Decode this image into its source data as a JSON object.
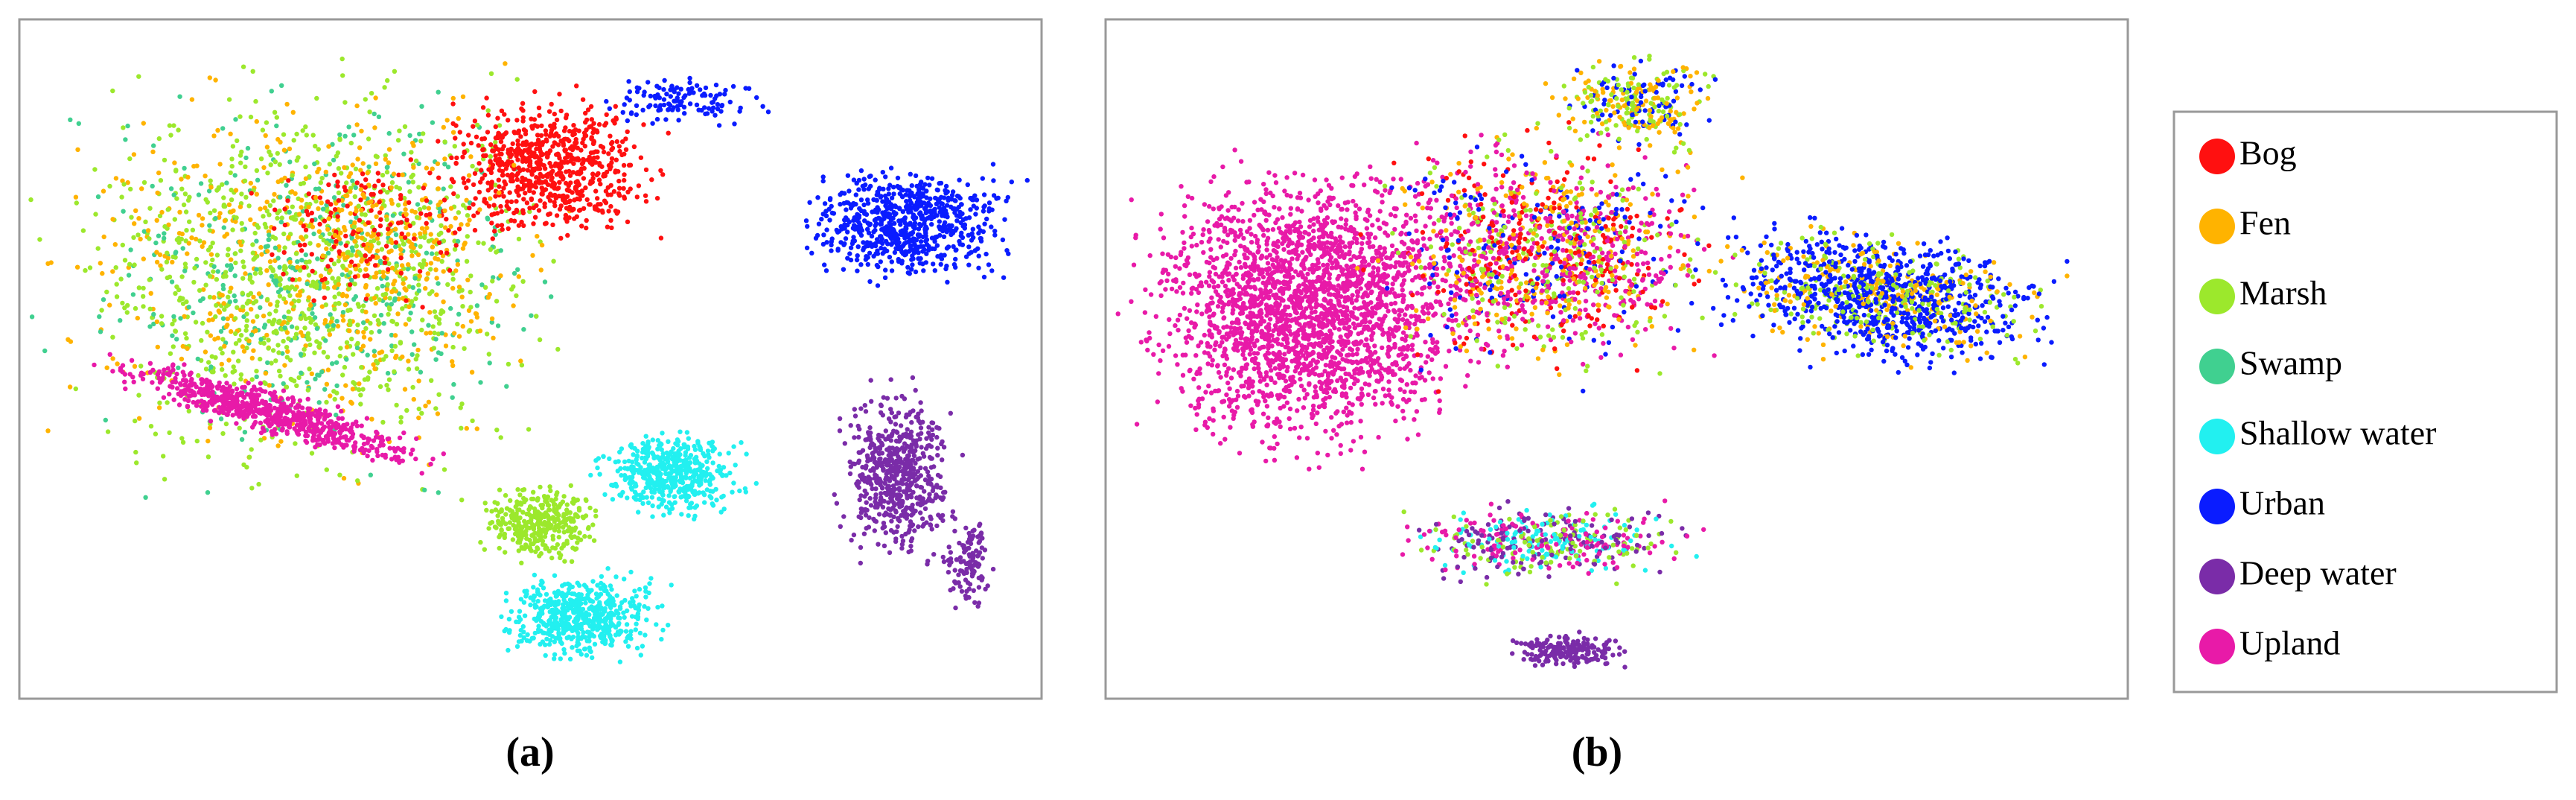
{
  "figure": {
    "panels": [
      {
        "label": "(a)"
      },
      {
        "label": "(b)"
      }
    ],
    "legend": [
      {
        "name": "Bog",
        "color": "#ff1010"
      },
      {
        "name": "Fen",
        "color": "#ffb300"
      },
      {
        "name": "Marsh",
        "color": "#9ce82c"
      },
      {
        "name": "Swamp",
        "color": "#40d090"
      },
      {
        "name": "Shallow water",
        "color": "#22f0f0"
      },
      {
        "name": "Urban",
        "color": "#0a1cff"
      },
      {
        "name": "Deep water",
        "color": "#7a2ca8"
      },
      {
        "name": "Upland",
        "color": "#e81aa8"
      }
    ]
  }
}
